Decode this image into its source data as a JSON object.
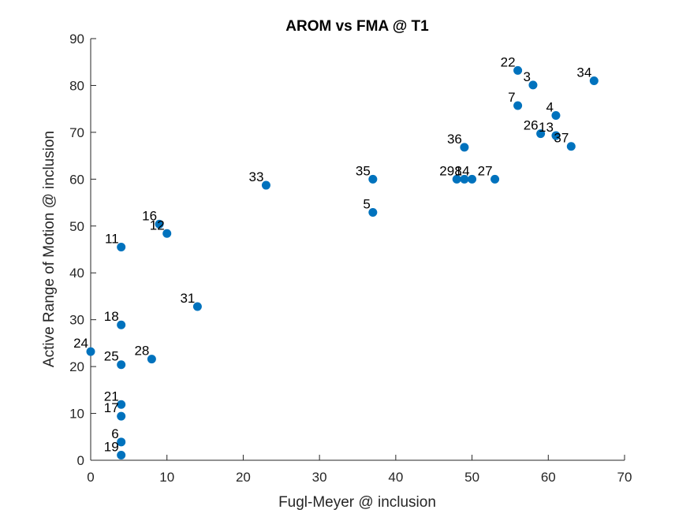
{
  "chart_data": {
    "type": "scatter",
    "title": "AROM vs FMA @ T1",
    "xlabel": "Fugl-Meyer @ inclusion",
    "ylabel": "Active Range of Motion @ inclusion",
    "xlim": [
      0,
      70
    ],
    "ylim": [
      0,
      90
    ],
    "xticks": [
      0,
      10,
      20,
      30,
      40,
      50,
      60,
      70
    ],
    "yticks": [
      0,
      10,
      20,
      30,
      40,
      50,
      60,
      70,
      80,
      90
    ],
    "grid": false,
    "legend": "none",
    "marker_color": "#0072BD",
    "points": [
      {
        "label": "22",
        "x": 56,
        "y": 83.2
      },
      {
        "label": "3",
        "x": 58,
        "y": 80.1
      },
      {
        "label": "34",
        "x": 66,
        "y": 81
      },
      {
        "label": "7",
        "x": 56,
        "y": 75.7
      },
      {
        "label": "4",
        "x": 61,
        "y": 73.6
      },
      {
        "label": "26",
        "x": 59,
        "y": 69.7
      },
      {
        "label": "13",
        "x": 61,
        "y": 69.3
      },
      {
        "label": "37",
        "x": 63,
        "y": 67
      },
      {
        "label": "36",
        "x": 49,
        "y": 66.8
      },
      {
        "label": "29",
        "x": 48,
        "y": 60
      },
      {
        "label": "8",
        "x": 49,
        "y": 60
      },
      {
        "label": "14",
        "x": 50,
        "y": 60
      },
      {
        "label": "27",
        "x": 53,
        "y": 60
      },
      {
        "label": "35",
        "x": 37,
        "y": 60
      },
      {
        "label": "5",
        "x": 37,
        "y": 52.9
      },
      {
        "label": "33",
        "x": 23,
        "y": 58.7
      },
      {
        "label": "16",
        "x": 9,
        "y": 50.4
      },
      {
        "label": "12",
        "x": 10,
        "y": 48.4
      },
      {
        "label": "11",
        "x": 4,
        "y": 45.5
      },
      {
        "label": "31",
        "x": 14,
        "y": 32.8
      },
      {
        "label": "18",
        "x": 4,
        "y": 28.9
      },
      {
        "label": "24",
        "x": 0,
        "y": 23.2
      },
      {
        "label": "28",
        "x": 8,
        "y": 21.6
      },
      {
        "label": "25",
        "x": 4,
        "y": 20.4
      },
      {
        "label": "21",
        "x": 4,
        "y": 11.9
      },
      {
        "label": "17",
        "x": 4,
        "y": 9.4
      },
      {
        "label": "6",
        "x": 4,
        "y": 3.9
      },
      {
        "label": "19",
        "x": 4,
        "y": 1.1
      }
    ]
  }
}
